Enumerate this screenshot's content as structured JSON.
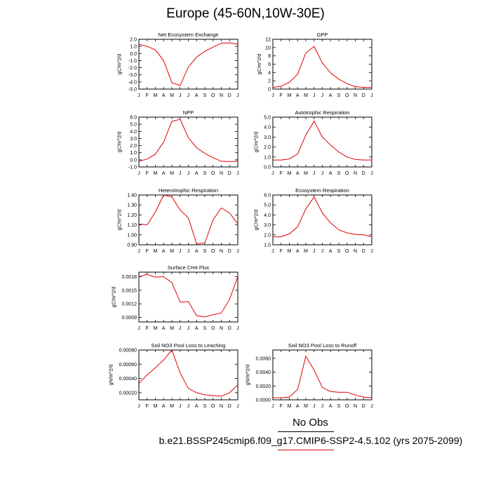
{
  "page": {
    "title": "Europe (45-60N,10W-30E)",
    "legend_title": "No Obs",
    "caption": "b.e21.BSSP245cmip6.f09_g17.CMIP6-SSP2-4.5.102 (yrs 2075-2099)",
    "line_color": "#e00000"
  },
  "chart_data": [
    {
      "type": "line",
      "title": "Net Ecosystem Exchange",
      "ylabel": "gC/m^2/d",
      "categories": [
        "J",
        "F",
        "M",
        "A",
        "M",
        "J",
        "J",
        "A",
        "S",
        "O",
        "N",
        "D",
        "J"
      ],
      "ylim": [
        -5.0,
        2.0
      ],
      "yticks": [
        "2.0",
        "1.0",
        "0.0",
        "-1.0",
        "-2.0",
        "-3.0",
        "-4.0",
        "-5.0"
      ],
      "ytick_values": [
        2.0,
        1.0,
        0.0,
        -1.0,
        -2.0,
        -3.0,
        -4.0,
        -5.0
      ],
      "values": [
        1.3,
        1.0,
        0.5,
        -1.0,
        -4.1,
        -4.5,
        -1.9,
        -0.5,
        0.3,
        0.9,
        1.45,
        1.5,
        1.3
      ]
    },
    {
      "type": "line",
      "title": "GPP",
      "ylabel": "gC/m^2/d",
      "categories": [
        "J",
        "F",
        "M",
        "A",
        "M",
        "J",
        "J",
        "A",
        "S",
        "O",
        "N",
        "D",
        "J"
      ],
      "ylim": [
        0,
        12
      ],
      "yticks": [
        "12",
        "10",
        "8",
        "6",
        "4",
        "2",
        "0"
      ],
      "ytick_values": [
        12,
        10,
        8,
        6,
        4,
        2,
        0
      ],
      "values": [
        0.4,
        0.7,
        1.6,
        3.6,
        8.7,
        10.3,
        6.3,
        3.9,
        2.4,
        1.3,
        0.6,
        0.4,
        0.4
      ]
    },
    {
      "type": "line",
      "title": "NPP",
      "ylabel": "gC/m^2/d",
      "categories": [
        "J",
        "F",
        "M",
        "A",
        "M",
        "J",
        "J",
        "A",
        "S",
        "O",
        "N",
        "D",
        "J"
      ],
      "ylim": [
        -1.0,
        6.0
      ],
      "yticks": [
        "6.0",
        "5.0",
        "4.0",
        "3.0",
        "2.0",
        "1.0",
        "0.0",
        "-1.0"
      ],
      "ytick_values": [
        6.0,
        5.0,
        4.0,
        3.0,
        2.0,
        1.0,
        0.0,
        -1.0
      ],
      "values": [
        -0.2,
        0.1,
        0.8,
        2.5,
        5.4,
        5.7,
        3.1,
        1.7,
        0.9,
        0.3,
        -0.2,
        -0.25,
        -0.2
      ]
    },
    {
      "type": "line",
      "title": "Autotrophic Respiration",
      "ylabel": "gC/m^2/d",
      "categories": [
        "J",
        "F",
        "M",
        "A",
        "M",
        "J",
        "J",
        "A",
        "S",
        "O",
        "N",
        "D",
        "J"
      ],
      "ylim": [
        0.0,
        5.0
      ],
      "yticks": [
        "5.0",
        "4.0",
        "3.0",
        "2.0",
        "1.0",
        "0.0"
      ],
      "ytick_values": [
        5.0,
        4.0,
        3.0,
        2.0,
        1.0,
        0.0
      ],
      "values": [
        0.7,
        0.7,
        0.8,
        1.3,
        3.2,
        4.6,
        3.0,
        2.2,
        1.5,
        1.0,
        0.75,
        0.7,
        0.7
      ]
    },
    {
      "type": "line",
      "title": "Heterotrophic Respiration",
      "ylabel": "gC/m^2/d",
      "categories": [
        "J",
        "F",
        "M",
        "A",
        "M",
        "J",
        "J",
        "A",
        "S",
        "O",
        "N",
        "D",
        "J"
      ],
      "ylim": [
        0.9,
        1.4
      ],
      "yticks": [
        "1.40",
        "1.30",
        "1.20",
        "1.10",
        "1.00",
        "0.90"
      ],
      "ytick_values": [
        1.4,
        1.3,
        1.2,
        1.1,
        1.0,
        0.9
      ],
      "values": [
        1.11,
        1.1,
        1.23,
        1.4,
        1.38,
        1.25,
        1.17,
        0.91,
        0.92,
        1.15,
        1.27,
        1.22,
        1.11
      ]
    },
    {
      "type": "line",
      "title": "Ecosystem Respiration",
      "ylabel": "gC/m^2/d",
      "categories": [
        "J",
        "F",
        "M",
        "A",
        "M",
        "J",
        "J",
        "A",
        "S",
        "O",
        "N",
        "D",
        "J"
      ],
      "ylim": [
        1.0,
        6.0
      ],
      "yticks": [
        "6.0",
        "5.0",
        "4.0",
        "3.0",
        "2.0",
        "1.0"
      ],
      "ytick_values": [
        6.0,
        5.0,
        4.0,
        3.0,
        2.0,
        1.0
      ],
      "values": [
        1.8,
        1.8,
        2.1,
        2.8,
        4.6,
        5.8,
        4.2,
        3.2,
        2.5,
        2.2,
        2.05,
        2.0,
        1.8
      ]
    },
    {
      "type": "line",
      "title": "Surface CH4 Flux",
      "ylabel": "gC/m^2/d",
      "categories": [
        "J",
        "F",
        "M",
        "A",
        "M",
        "J",
        "J",
        "A",
        "S",
        "O",
        "N",
        "D",
        "J"
      ],
      "ylim": [
        0.0008,
        0.0019
      ],
      "yticks": [
        "0.0018",
        "0.0015",
        "0.0012",
        "0.0009"
      ],
      "ytick_values": [
        0.0018,
        0.0015,
        0.0012,
        0.0009
      ],
      "values": [
        0.0018,
        0.00185,
        0.00179,
        0.0018,
        0.00167,
        0.00124,
        0.00125,
        0.00094,
        0.00091,
        0.00096,
        0.001,
        0.0013,
        0.0018
      ]
    },
    {
      "type": "line",
      "title": "Soil NO3 Pool Loss to Leaching",
      "ylabel": "gN/m^2/d",
      "categories": [
        "J",
        "F",
        "M",
        "A",
        "M",
        "J",
        "J",
        "A",
        "S",
        "O",
        "N",
        "D",
        "J"
      ],
      "ylim": [
        0.0001,
        0.0008
      ],
      "yticks": [
        "0.00080",
        "0.00060",
        "0.00040",
        "0.00020"
      ],
      "ytick_values": [
        0.0008,
        0.0006,
        0.0004,
        0.0002
      ],
      "values": [
        0.00033,
        0.00045,
        0.00055,
        0.00066,
        0.0008,
        0.00048,
        0.00026,
        0.0002,
        0.00017,
        0.00016,
        0.00015,
        0.0002,
        0.00031
      ]
    },
    {
      "type": "line",
      "title": "Soil NO3 Pool Loss to Runoff",
      "ylabel": "gN/m^2/d",
      "categories": [
        "J",
        "F",
        "M",
        "A",
        "M",
        "J",
        "J",
        "A",
        "S",
        "O",
        "N",
        "D",
        "J"
      ],
      "ylim": [
        0.0,
        0.0072
      ],
      "yticks": [
        "0.0060",
        "0.0040",
        "0.0020",
        "0.0000"
      ],
      "ytick_values": [
        0.006,
        0.004,
        0.002,
        0.0
      ],
      "values": [
        0.0003,
        0.0003,
        0.0004,
        0.0015,
        0.0063,
        0.0043,
        0.0018,
        0.0012,
        0.0011,
        0.0011,
        0.0007,
        0.0004,
        0.0003
      ]
    }
  ]
}
